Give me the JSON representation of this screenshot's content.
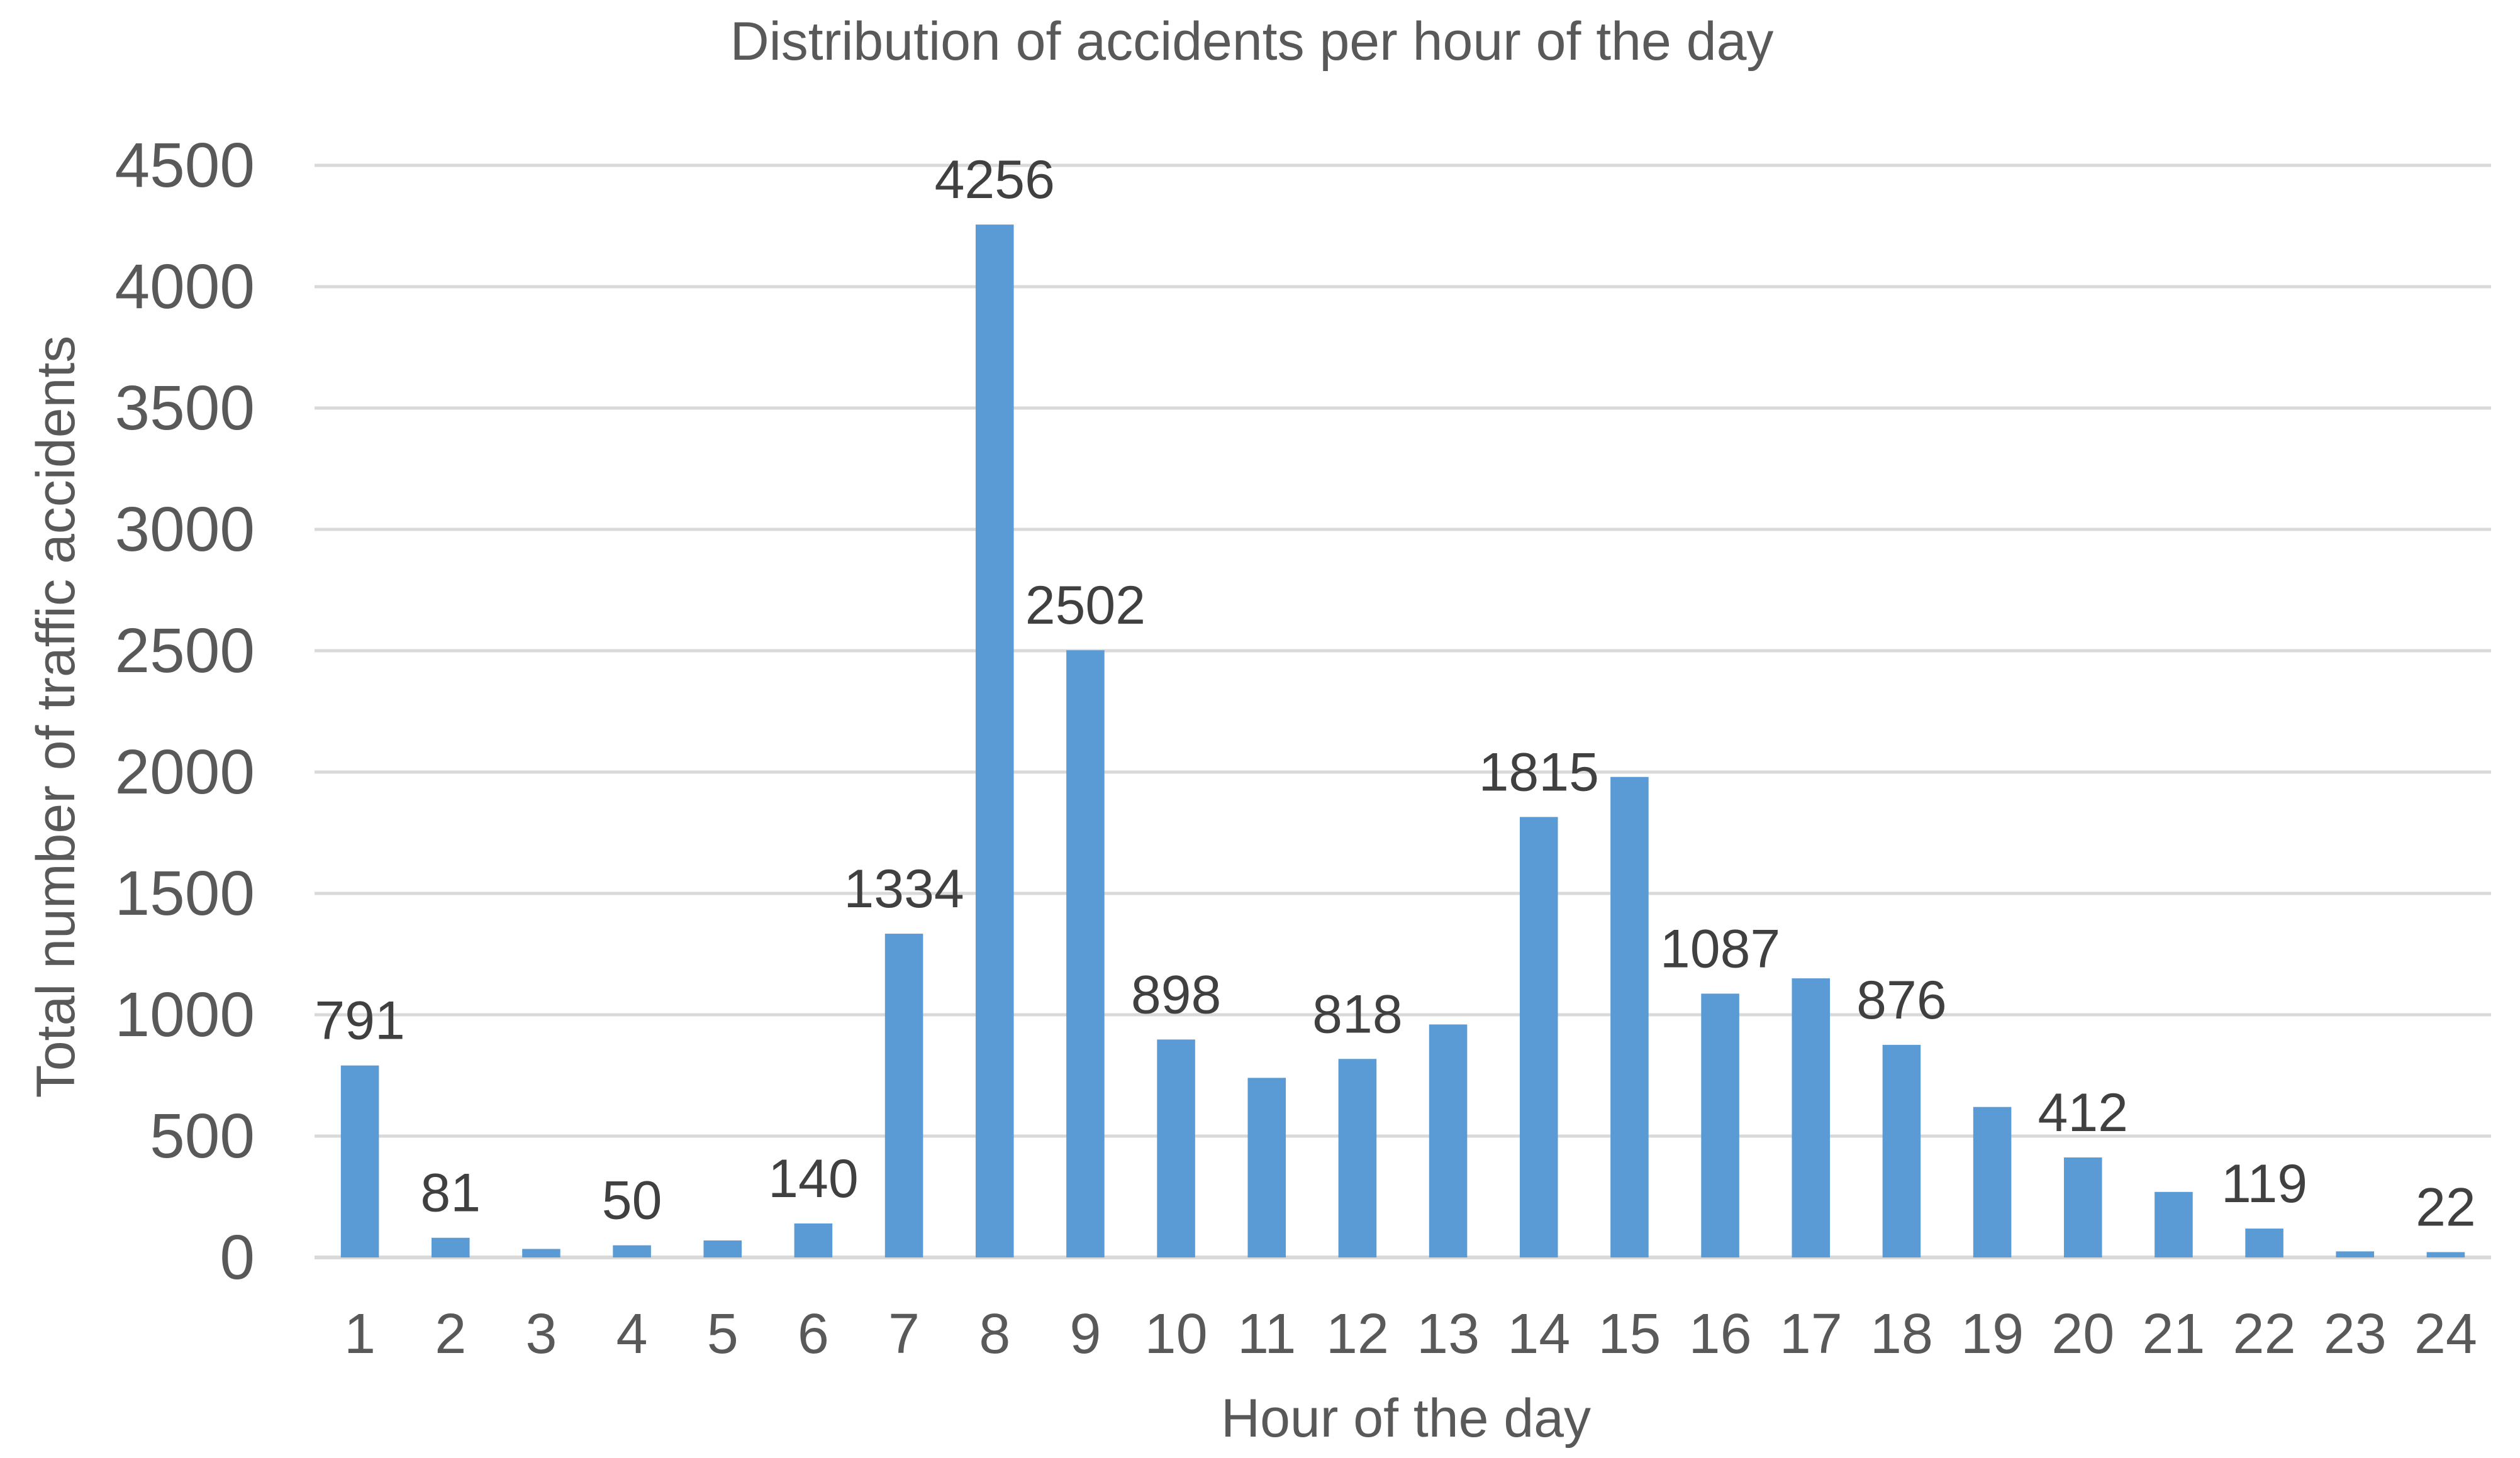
{
  "chart_data": {
    "type": "bar",
    "title": "Distribution of accidents per hour of the day",
    "xlabel": "Hour of the day",
    "ylabel": "Total number of traffic accidents",
    "categories": [
      "1",
      "2",
      "3",
      "4",
      "5",
      "6",
      "7",
      "8",
      "9",
      "10",
      "11",
      "12",
      "13",
      "14",
      "15",
      "16",
      "17",
      "18",
      "19",
      "20",
      "21",
      "22",
      "23",
      "24"
    ],
    "values": [
      791,
      81,
      35,
      50,
      70,
      140,
      1334,
      4256,
      2502,
      898,
      740,
      818,
      960,
      1815,
      1980,
      1087,
      1150,
      876,
      620,
      412,
      270,
      119,
      25,
      22
    ],
    "data_labels": [
      "791",
      "81",
      "",
      "50",
      "",
      "140",
      "1334",
      "4256",
      "2502",
      "898",
      "",
      "818",
      "",
      "1815",
      "",
      "1087",
      "",
      "876",
      "",
      "412",
      "",
      "119",
      "",
      "22"
    ],
    "ylim": [
      0,
      4500
    ],
    "yticks": [
      "0",
      "500",
      "1000",
      "1500",
      "2000",
      "2500",
      "3000",
      "3500",
      "4000",
      "4500"
    ],
    "grid": true,
    "bar_color": "#5b9bd5"
  }
}
